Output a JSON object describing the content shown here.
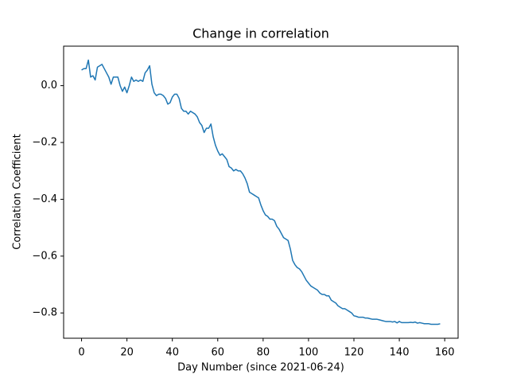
{
  "chart_data": {
    "type": "line",
    "title": "Change in correlation",
    "xlabel": "Day Number (since 2021-06-24)",
    "ylabel": "Correlation Coefficient",
    "xlim": [
      -7.9,
      165.9
    ],
    "ylim": [
      -0.889,
      0.139
    ],
    "xticks": [
      0,
      20,
      40,
      60,
      80,
      100,
      120,
      140,
      160
    ],
    "yticks": [
      {
        "value": -0.8,
        "label": "−0.8"
      },
      {
        "value": -0.6,
        "label": "−0.6"
      },
      {
        "value": -0.4,
        "label": "−0.4"
      },
      {
        "value": -0.2,
        "label": "−0.2"
      },
      {
        "value": 0,
        "label": "0.0"
      }
    ],
    "x": [
      0,
      1,
      2,
      3,
      4,
      5,
      6,
      7,
      8,
      9,
      10,
      11,
      12,
      13,
      14,
      15,
      16,
      17,
      18,
      19,
      20,
      21,
      22,
      23,
      24,
      25,
      26,
      27,
      28,
      29,
      30,
      31,
      32,
      33,
      34,
      35,
      36,
      37,
      38,
      39,
      40,
      41,
      42,
      43,
      44,
      45,
      46,
      47,
      48,
      49,
      50,
      51,
      52,
      53,
      54,
      55,
      56,
      57,
      58,
      59,
      60,
      61,
      62,
      63,
      64,
      65,
      66,
      67,
      68,
      69,
      70,
      71,
      72,
      73,
      74,
      75,
      76,
      77,
      78,
      79,
      80,
      81,
      82,
      83,
      84,
      85,
      86,
      87,
      88,
      89,
      90,
      91,
      92,
      93,
      94,
      95,
      96,
      97,
      98,
      99,
      100,
      101,
      102,
      103,
      104,
      105,
      106,
      107,
      108,
      109,
      110,
      111,
      112,
      113,
      114,
      115,
      116,
      117,
      118,
      119,
      120,
      121,
      122,
      123,
      124,
      125,
      126,
      127,
      128,
      129,
      130,
      131,
      132,
      133,
      134,
      135,
      136,
      137,
      138,
      139,
      140,
      141,
      142,
      143,
      144,
      145,
      146,
      147,
      148,
      149,
      150,
      151,
      152,
      153,
      154,
      155,
      156,
      157,
      158
    ],
    "series": [
      {
        "name": "Correlation Coefficient",
        "color": "#1f77b4",
        "values": [
          0.055,
          0.06,
          0.06,
          0.09,
          0.03,
          0.035,
          0.02,
          0.065,
          0.07,
          0.075,
          0.06,
          0.045,
          0.03,
          0.005,
          0.03,
          0.03,
          0.03,
          0.0,
          -0.02,
          -0.005,
          -0.025,
          0.0,
          0.03,
          0.015,
          0.02,
          0.015,
          0.02,
          0.015,
          0.045,
          0.055,
          0.07,
          0.005,
          -0.025,
          -0.035,
          -0.03,
          -0.03,
          -0.035,
          -0.045,
          -0.065,
          -0.06,
          -0.04,
          -0.03,
          -0.03,
          -0.045,
          -0.08,
          -0.09,
          -0.09,
          -0.1,
          -0.09,
          -0.095,
          -0.1,
          -0.11,
          -0.13,
          -0.14,
          -0.165,
          -0.15,
          -0.15,
          -0.135,
          -0.18,
          -0.21,
          -0.23,
          -0.245,
          -0.24,
          -0.25,
          -0.26,
          -0.285,
          -0.29,
          -0.3,
          -0.295,
          -0.3,
          -0.3,
          -0.31,
          -0.325,
          -0.345,
          -0.375,
          -0.38,
          -0.385,
          -0.39,
          -0.395,
          -0.42,
          -0.44,
          -0.455,
          -0.46,
          -0.47,
          -0.47,
          -0.475,
          -0.495,
          -0.505,
          -0.52,
          -0.535,
          -0.54,
          -0.545,
          -0.575,
          -0.615,
          -0.63,
          -0.64,
          -0.645,
          -0.655,
          -0.67,
          -0.685,
          -0.695,
          -0.705,
          -0.71,
          -0.715,
          -0.72,
          -0.73,
          -0.735,
          -0.735,
          -0.74,
          -0.74,
          -0.755,
          -0.76,
          -0.765,
          -0.775,
          -0.78,
          -0.785,
          -0.785,
          -0.79,
          -0.795,
          -0.8,
          -0.81,
          -0.812,
          -0.815,
          -0.815,
          -0.815,
          -0.818,
          -0.818,
          -0.82,
          -0.822,
          -0.822,
          -0.822,
          -0.824,
          -0.826,
          -0.828,
          -0.83,
          -0.83,
          -0.83,
          -0.832,
          -0.83,
          -0.835,
          -0.83,
          -0.834,
          -0.834,
          -0.834,
          -0.834,
          -0.833,
          -0.834,
          -0.832,
          -0.836,
          -0.834,
          -0.836,
          -0.838,
          -0.838,
          -0.838,
          -0.84,
          -0.84,
          -0.84,
          -0.84,
          -0.838
        ]
      }
    ]
  }
}
